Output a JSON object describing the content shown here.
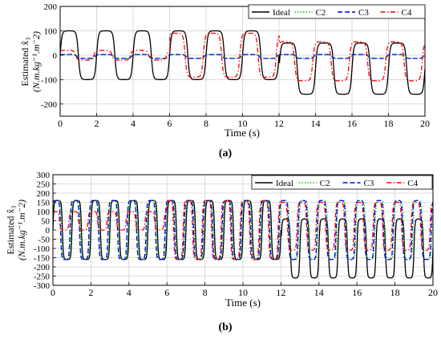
{
  "chart_data": [
    {
      "type": "line",
      "panel_label": "(a)",
      "xlabel": "Time (s)",
      "ylabel_line1": "Estimated x̂₃",
      "ylabel_line2": "(N.m.kg⁻¹.m⁻2)",
      "xlim": [
        0,
        20
      ],
      "ylim": [
        -250,
        200
      ],
      "xticks": [
        0,
        2,
        4,
        6,
        8,
        10,
        12,
        14,
        16,
        18,
        20
      ],
      "yticks": [
        200,
        100,
        0,
        -100,
        -200
      ],
      "grid": true,
      "legend_placement": "top-right",
      "legend_layout": "horizontal",
      "series": [
        {
          "name": "Ideal",
          "color": "#000000",
          "style": "solid",
          "description_values": {
            "t_switch1": 6,
            "t_switch2": 12,
            "segments": [
              {
                "t": [
                  0,
                  12
                ],
                "amplitude": 100,
                "offset": 0,
                "period": 2.0
              },
              {
                "t": [
                  12,
                  20
                ],
                "amplitude": 105,
                "offset": -55,
                "period": 2.0
              }
            ]
          }
        },
        {
          "name": "C2",
          "color": "#00c800",
          "style": "dotted",
          "description_values": {
            "segments": [
              {
                "t": [
                  0,
                  20
                ],
                "amplitude": 8,
                "offset": -5,
                "period": 2.0
              }
            ]
          }
        },
        {
          "name": "C3",
          "color": "#0000ff",
          "style": "dashed",
          "description_values": {
            "segments": [
              {
                "t": [
                  0,
                  20
                ],
                "amplitude": 8,
                "offset": -5,
                "period": 2.0
              }
            ]
          }
        },
        {
          "name": "C4",
          "color": "#ff0000",
          "style": "dashdot",
          "description_values": {
            "segments": [
              {
                "t": [
                  0,
                  6
                ],
                "amplitude": 20,
                "offset": 0,
                "period": 2.0
              },
              {
                "t": [
                  6,
                  12
                ],
                "amplitude": 90,
                "offset": 0,
                "period": 2.0
              },
              {
                "t": [
                  12,
                  20
                ],
                "amplitude": 80,
                "offset": -25,
                "period": 2.0
              }
            ]
          }
        }
      ]
    },
    {
      "type": "line",
      "panel_label": "(b)",
      "xlabel": "Time (s)",
      "ylabel_line1": "Estimated x̂₃",
      "ylabel_line2": "(N.m.kg⁻¹.m⁻2)",
      "xlim": [
        0,
        20
      ],
      "ylim": [
        -300,
        300
      ],
      "xticks": [
        0,
        2,
        4,
        6,
        8,
        10,
        12,
        14,
        16,
        18,
        20
      ],
      "yticks": [
        300,
        250,
        200,
        150,
        100,
        50,
        0,
        -50,
        -100,
        -150,
        -200,
        -250,
        -300
      ],
      "grid": true,
      "legend_placement": "top-right",
      "legend_layout": "horizontal",
      "series": [
        {
          "name": "Ideal",
          "color": "#000000",
          "style": "solid",
          "description_values": {
            "segments": [
              {
                "t": [
                  0,
                  12
                ],
                "amplitude": 160,
                "offset": 0,
                "period": 1.0
              },
              {
                "t": [
                  12,
                  20
                ],
                "amplitude": 160,
                "offset": -100,
                "period": 1.0
              }
            ]
          }
        },
        {
          "name": "C2",
          "color": "#00c800",
          "style": "dotted",
          "description_values": {
            "segments": [
              {
                "t": [
                  0,
                  12
                ],
                "amplitude": 160,
                "offset": 0,
                "period": 1.0
              },
              {
                "t": [
                  12,
                  20
                ],
                "amplitude": 160,
                "offset": 0,
                "period": 1.0
              }
            ]
          }
        },
        {
          "name": "C3",
          "color": "#0000ff",
          "style": "dashed",
          "description_values": {
            "segments": [
              {
                "t": [
                  0,
                  12
                ],
                "amplitude": 160,
                "offset": 0,
                "period": 1.0
              },
              {
                "t": [
                  12,
                  20
                ],
                "amplitude": 160,
                "offset": 0,
                "period": 1.0
              }
            ]
          }
        },
        {
          "name": "C4",
          "color": "#ff0000",
          "style": "dashdot",
          "description_values": {
            "segments": [
              {
                "t": [
                  0,
                  6
                ],
                "amplitude": 50,
                "offset": 50,
                "period": 1.0
              },
              {
                "t": [
                  6,
                  12
                ],
                "amplitude": 160,
                "offset": 0,
                "period": 1.0
              },
              {
                "t": [
                  12,
                  20
                ],
                "amplitude": 130,
                "offset": 20,
                "period": 1.0
              }
            ]
          }
        }
      ]
    }
  ]
}
